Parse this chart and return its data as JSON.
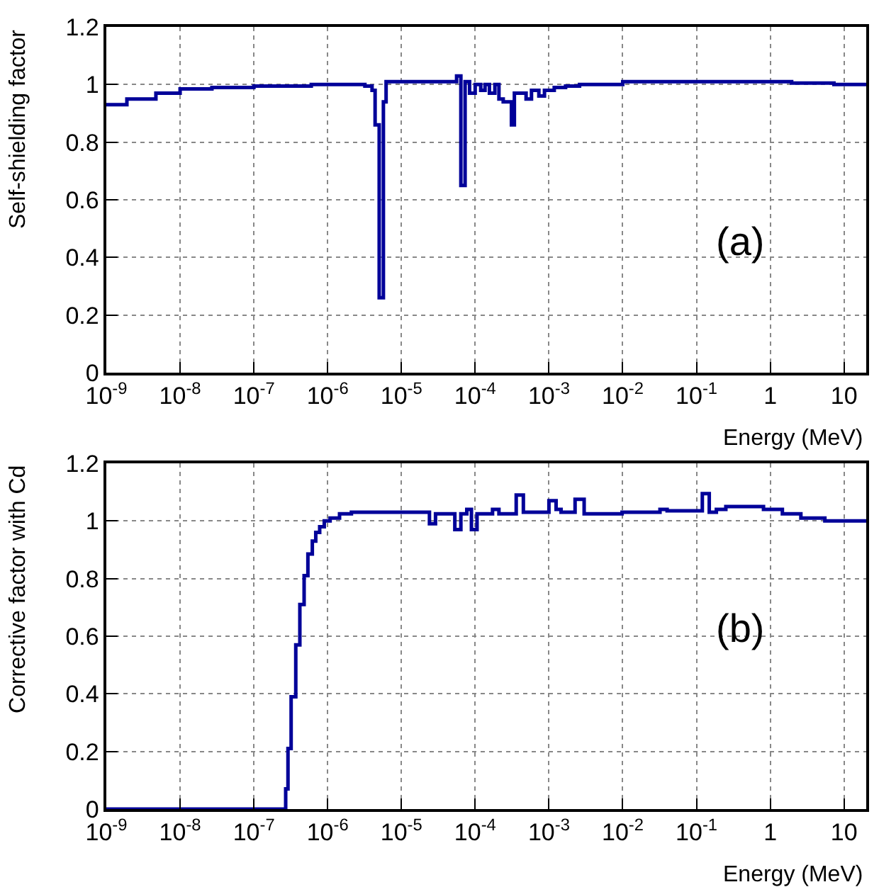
{
  "chart_data": [
    {
      "type": "step",
      "xlabel": "Energy (MeV)",
      "ylabel": "Self-shielding factor",
      "annotations": [
        "(a)"
      ],
      "color": "#000099",
      "log": "x",
      "grid": true,
      "x": [
        1e-09,
        1.9e-09,
        4.7e-09,
        1e-08,
        2.7e-08,
        1e-07,
        6e-07,
        3.2e-06,
        4e-06,
        4.4e-06,
        5e-06,
        5.7e-06,
        6.2e-06,
        5.6e-05,
        6.4e-05,
        7.3e-05,
        8.4e-05,
        0.0001,
        0.000119,
        0.000136,
        0.000156,
        0.000185,
        0.00021,
        0.00024,
        0.00031,
        0.00034,
        0.00049,
        0.00058,
        0.00073,
        0.00087,
        0.00118,
        0.00168,
        0.0026,
        0.01,
        1.95,
        7.3,
        20
      ],
      "values": [
        0.93,
        0.95,
        0.97,
        0.985,
        0.99,
        0.995,
        1.0,
        0.995,
        0.98,
        0.86,
        0.26,
        0.94,
        1.01,
        1.03,
        0.65,
        1.01,
        0.97,
        1.0,
        0.98,
        1.0,
        0.97,
        1.0,
        0.95,
        0.94,
        0.86,
        0.97,
        0.95,
        0.98,
        0.96,
        0.98,
        0.99,
        0.995,
        1.0,
        1.01,
        1.005,
        1.0,
        1.0
      ],
      "xlim": [
        1e-09,
        20
      ],
      "xticks": [
        {
          "value": 1e-09,
          "label": "10$^{-9}$"
        },
        {
          "value": 1e-08,
          "label": "10$^{-8}$"
        },
        {
          "value": 1e-07,
          "label": "10$^{-7}$"
        },
        {
          "value": 1e-06,
          "label": "10$^{-6}$"
        },
        {
          "value": 1e-05,
          "label": "10$^{-5}$"
        },
        {
          "value": 0.0001,
          "label": "10$^{-4}$"
        },
        {
          "value": 0.001,
          "label": "10$^{-3}$"
        },
        {
          "value": 0.01,
          "label": "10$^{-2}$"
        },
        {
          "value": 0.1,
          "label": "10$^{-1}$"
        },
        1,
        10
      ],
      "ylim": [
        0,
        1.2
      ],
      "yticks": [
        0,
        0.2,
        0.4,
        0.6,
        0.8,
        1,
        1.2
      ]
    },
    {
      "type": "step",
      "xlabel": "Energy (MeV)",
      "ylabel": "Corrective factor with Cd",
      "annotations": [
        "(b)"
      ],
      "color": "#000099",
      "log": "x",
      "grid": true,
      "x": [
        1e-09,
        2.7e-07,
        2.9e-07,
        3.2e-07,
        3.7e-07,
        4.2e-07,
        4.8e-07,
        5.4e-07,
        6.2e-07,
        6.9e-07,
        7.8e-07,
        9e-07,
        1.08e-06,
        1.45e-06,
        2.1e-06,
        2.4e-05,
        2.9e-05,
        5.3e-05,
        6.4e-05,
        7.7e-05,
        8.9e-05,
        0.000106,
        0.000172,
        0.00021,
        0.00036,
        0.00045,
        0.001,
        0.00125,
        0.00146,
        0.00226,
        0.003,
        0.0098,
        0.032,
        0.04,
        0.12,
        0.149,
        0.186,
        0.25,
        0.81,
        1.46,
        2.6,
        5.5,
        20
      ],
      "values": [
        0,
        0.07,
        0.21,
        0.39,
        0.57,
        0.71,
        0.81,
        0.885,
        0.93,
        0.96,
        0.98,
        1.0,
        1.01,
        1.025,
        1.03,
        0.99,
        1.025,
        0.97,
        1.025,
        1.04,
        0.97,
        1.025,
        1.04,
        1.025,
        1.09,
        1.03,
        1.07,
        1.04,
        1.03,
        1.075,
        1.025,
        1.03,
        1.04,
        1.035,
        1.095,
        1.03,
        1.04,
        1.05,
        1.04,
        1.025,
        1.01,
        1.0,
        1.0
      ],
      "xlim": [
        1e-09,
        20
      ],
      "xticks": [
        {
          "value": 1e-09,
          "label": "10$^{-9}$"
        },
        {
          "value": 1e-08,
          "label": "10$^{-8}$"
        },
        {
          "value": 1e-07,
          "label": "10$^{-7}$"
        },
        {
          "value": 1e-06,
          "label": "10$^{-6}$"
        },
        {
          "value": 1e-05,
          "label": "10$^{-5}$"
        },
        {
          "value": 0.0001,
          "label": "10$^{-4}$"
        },
        {
          "value": 0.001,
          "label": "10$^{-3}$"
        },
        {
          "value": 0.01,
          "label": "10$^{-2}$"
        },
        {
          "value": 0.1,
          "label": "10$^{-1}$"
        },
        1,
        10
      ],
      "ylim": [
        0,
        1.2
      ],
      "yticks": [
        0,
        0.2,
        0.4,
        0.6,
        0.8,
        1,
        1.2
      ]
    }
  ]
}
